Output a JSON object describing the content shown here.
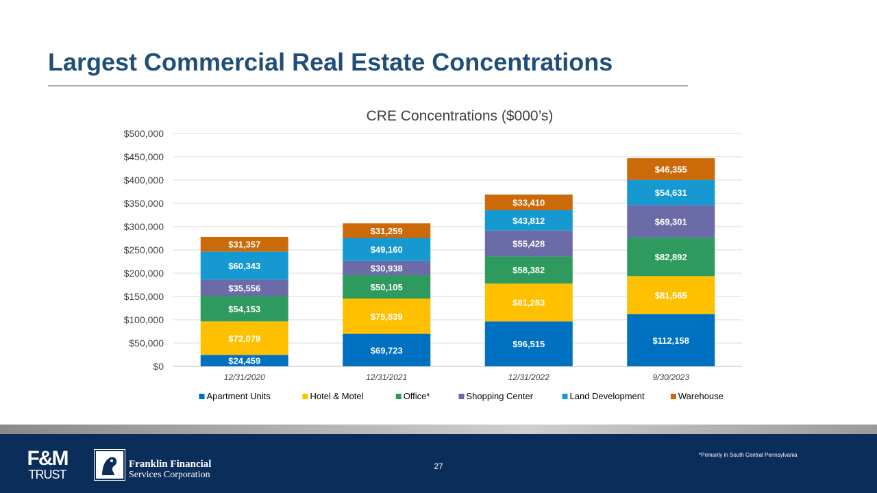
{
  "slide": {
    "title": "Largest Commercial Real Estate Concentrations",
    "page_number": "27",
    "footnote": "*Primarily in South Central Pennsylvania"
  },
  "logos": {
    "fm_trust_line1": "F&M",
    "fm_trust_line2": "TRUST",
    "franklin_line1": "Franklin Financial",
    "franklin_line2": "Services Corporation"
  },
  "chart_data": {
    "type": "bar",
    "stacked": true,
    "title": "CRE Concentrations ($000’s)",
    "xlabel": "",
    "ylabel": "",
    "ylim": [
      0,
      500000
    ],
    "ytick_labels": [
      "$0",
      "$50,000",
      "$100,000",
      "$150,000",
      "$200,000",
      "$250,000",
      "$300,000",
      "$350,000",
      "$400,000",
      "$450,000",
      "$500,000"
    ],
    "grid": true,
    "legend_position": "bottom",
    "categories": [
      "12/31/2020",
      "12/31/2021",
      "12/31/2022",
      "9/30/2023"
    ],
    "series": [
      {
        "name": "Apartment Units",
        "color": "#0070c0",
        "values": [
          24459,
          69723,
          96515,
          112158
        ],
        "labels": [
          "$24,459",
          "$69,723",
          "$96,515",
          "$112,158"
        ]
      },
      {
        "name": "Hotel & Motel",
        "color": "#ffc000",
        "values": [
          72079,
          75839,
          81283,
          81565
        ],
        "labels": [
          "$72,079",
          "$75,839",
          "$81,283",
          "$81,565"
        ]
      },
      {
        "name": "Office*",
        "color": "#2e9a5e",
        "values": [
          54153,
          50105,
          58382,
          82892
        ],
        "labels": [
          "$54,153",
          "$50,105",
          "$58,382",
          "$82,892"
        ]
      },
      {
        "name": "Shopping Center",
        "color": "#6b6ba8",
        "values": [
          35556,
          30938,
          55428,
          69301
        ],
        "labels": [
          "$35,556",
          "$30,938",
          "$55,428",
          "$69,301"
        ]
      },
      {
        "name": "Land Development",
        "color": "#1599d0",
        "values": [
          60343,
          49160,
          43812,
          54631
        ],
        "labels": [
          "$60,343",
          "$49,160",
          "$43,812",
          "$54,631"
        ]
      },
      {
        "name": "Warehouse",
        "color": "#cc6a0a",
        "values": [
          31357,
          31259,
          33410,
          46355
        ],
        "labels": [
          "$31,357",
          "$31,259",
          "$33,410",
          "$46,355"
        ]
      }
    ]
  }
}
